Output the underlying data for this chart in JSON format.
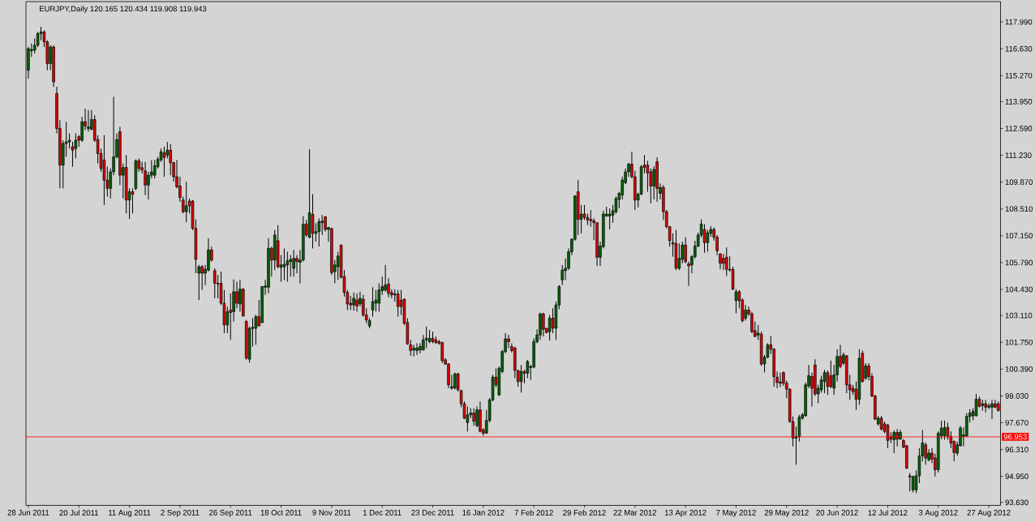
{
  "chart_data": {
    "type": "candlestick",
    "title": "EURJPY,Daily 120.165 120.434 119.908 119.943",
    "categories": [
      "28 Jun 2011",
      null,
      null,
      null,
      null,
      null,
      null,
      null,
      null,
      null,
      null,
      null,
      null,
      null,
      null,
      null,
      "20 Jul 2011",
      null,
      null,
      null,
      null,
      null,
      null,
      null,
      null,
      null,
      null,
      null,
      null,
      null,
      null,
      null,
      "11 Aug 2011",
      null,
      null,
      null,
      null,
      null,
      null,
      null,
      null,
      null,
      null,
      null,
      null,
      null,
      null,
      null,
      "2 Sep 2011",
      null,
      null,
      null,
      null,
      null,
      null,
      null,
      null,
      null,
      null,
      null,
      null,
      null,
      null,
      null,
      "26 Sep 2011",
      null,
      null,
      null,
      null,
      null,
      null,
      null,
      null,
      null,
      null,
      null,
      null,
      null,
      null,
      null,
      "18 Oct 2011",
      null,
      null,
      null,
      null,
      null,
      null,
      null,
      null,
      null,
      null,
      null,
      null,
      null,
      null,
      null,
      "9 Nov 2011",
      null,
      null,
      null,
      null,
      null,
      null,
      null,
      null,
      null,
      null,
      null,
      null,
      null,
      null,
      null,
      "1 Dec 2011",
      null,
      null,
      null,
      null,
      null,
      null,
      null,
      null,
      null,
      null,
      null,
      null,
      null,
      null,
      null,
      "23 Dec 2011",
      null,
      null,
      null,
      null,
      null,
      null,
      null,
      null,
      null,
      null,
      null,
      null,
      null,
      null,
      null,
      "16 Jan 2012",
      null,
      null,
      null,
      null,
      null,
      null,
      null,
      null,
      null,
      null,
      null,
      null,
      null,
      null,
      null,
      "7 Feb 2012",
      null,
      null,
      null,
      null,
      null,
      null,
      null,
      null,
      null,
      null,
      null,
      null,
      null,
      null,
      null,
      "29 Feb 2012",
      null,
      null,
      null,
      null,
      null,
      null,
      null,
      null,
      null,
      null,
      null,
      null,
      null,
      null,
      null,
      "22 Mar 2012",
      null,
      null,
      null,
      null,
      null,
      null,
      null,
      null,
      null,
      null,
      null,
      null,
      null,
      null,
      null,
      "13 Apr 2012",
      null,
      null,
      null,
      null,
      null,
      null,
      null,
      null,
      null,
      null,
      null,
      null,
      null,
      null,
      null,
      "7 May 2012",
      null,
      null,
      null,
      null,
      null,
      null,
      null,
      null,
      null,
      null,
      null,
      null,
      null,
      null,
      null,
      "29 May 2012",
      null,
      null,
      null,
      null,
      null,
      null,
      null,
      null,
      null,
      null,
      null,
      null,
      null,
      null,
      null,
      "20 Jun 2012",
      null,
      null,
      null,
      null,
      null,
      null,
      null,
      null,
      null,
      null,
      null,
      null,
      null,
      null,
      null,
      "12 Jul 2012",
      null,
      null,
      null,
      null,
      null,
      null,
      null,
      null,
      null,
      null,
      null,
      null,
      null,
      null,
      null,
      "3 Aug 2012",
      null,
      null,
      null,
      null,
      null,
      null,
      null,
      null,
      null,
      null,
      null,
      null,
      null,
      null,
      null,
      "27 Aug 2012",
      null,
      null,
      null
    ],
    "ohlc": [
      [
        115.54,
        116.72,
        115.12,
        116.64
      ],
      [
        116.52,
        116.89,
        116.22,
        116.59
      ],
      [
        116.56,
        117.15,
        116.39,
        116.81
      ],
      [
        116.81,
        117.48,
        116.72,
        117.4
      ],
      [
        117.4,
        117.74,
        117.06,
        117.48
      ],
      [
        117.48,
        117.57,
        116.72,
        116.98
      ],
      [
        116.98,
        117.06,
        115.54,
        115.88
      ],
      [
        115.88,
        116.81,
        115.54,
        116.72
      ],
      [
        116.72,
        116.81,
        114.7,
        114.95
      ],
      [
        114.36,
        114.7,
        112.34,
        112.59
      ],
      [
        112.59,
        113.01,
        109.55,
        110.73
      ],
      [
        110.73,
        111.99,
        109.55,
        111.83
      ],
      [
        111.83,
        112.93,
        111.15,
        111.91
      ],
      [
        111.91,
        112.34,
        111.57,
        111.99
      ],
      [
        111.66,
        111.91,
        110.65,
        111.49
      ],
      [
        111.57,
        112.34,
        111.07,
        111.99
      ],
      [
        112.17,
        112.25,
        111.66,
        111.99
      ],
      [
        111.99,
        113.18,
        111.91,
        112.93
      ],
      [
        112.93,
        113.6,
        112.5,
        112.71
      ],
      [
        112.59,
        113.52,
        112.42,
        112.67
      ],
      [
        112.54,
        113.52,
        112.5,
        113.04
      ],
      [
        113.04,
        113.26,
        111.91,
        111.99
      ],
      [
        112.03,
        112.25,
        110.82,
        111.32
      ],
      [
        111.32,
        111.57,
        110.39,
        110.56
      ],
      [
        110.99,
        112.25,
        108.71,
        109.97
      ],
      [
        109.97,
        110.65,
        109.13,
        109.55
      ],
      [
        109.55,
        110.56,
        109.04,
        110.39
      ],
      [
        110.39,
        114.19,
        110.22,
        111.15
      ],
      [
        111.15,
        112.34,
        111.07,
        112.03
      ],
      [
        112.42,
        112.67,
        109.72,
        110.22
      ],
      [
        110.22,
        110.82,
        109.04,
        110.61
      ],
      [
        110.61,
        111.24,
        108.28,
        108.96
      ],
      [
        108.96,
        109.55,
        108.0,
        109.38
      ],
      [
        109.38,
        109.55,
        108.28,
        109.25
      ],
      [
        109.55,
        111.02,
        109.46,
        110.95
      ],
      [
        110.95,
        111.07,
        110.39,
        110.56
      ],
      [
        110.6,
        110.9,
        110.31,
        110.48
      ],
      [
        110.44,
        110.9,
        109.21,
        109.72
      ],
      [
        109.72,
        110.39,
        108.99,
        110.22
      ],
      [
        110.22,
        110.99,
        110.06,
        110.39
      ],
      [
        110.22,
        110.99,
        110.06,
        110.7
      ],
      [
        110.65,
        111.15,
        110.56,
        111.02
      ],
      [
        110.99,
        111.57,
        110.9,
        111.41
      ],
      [
        111.36,
        111.66,
        110.14,
        111.12
      ],
      [
        111.24,
        111.91,
        111.07,
        111.49
      ],
      [
        111.49,
        111.8,
        110.22,
        110.85
      ],
      [
        110.85,
        110.9,
        109.89,
        110.14
      ],
      [
        110.14,
        110.99,
        109.55,
        109.63
      ],
      [
        109.67,
        110.14,
        108.87,
        109.09
      ],
      [
        108.96,
        109.13,
        108.28,
        108.37
      ],
      [
        108.37,
        109.89,
        107.83,
        108.67
      ],
      [
        108.91,
        109.04,
        108.28,
        108.67
      ],
      [
        108.91,
        108.96,
        107.44,
        107.52
      ],
      [
        107.52,
        107.98,
        105.25,
        105.95
      ],
      [
        105.25,
        105.67,
        103.89,
        105.58
      ],
      [
        105.58,
        105.67,
        104.4,
        105.25
      ],
      [
        105.25,
        105.67,
        104.65,
        105.45
      ],
      [
        105.41,
        107.02,
        105.33,
        106.43
      ],
      [
        106.43,
        106.6,
        105.84,
        105.92
      ],
      [
        105.38,
        105.5,
        103.98,
        104.74
      ],
      [
        104.74,
        105.16,
        103.98,
        104.7
      ],
      [
        104.74,
        105.33,
        103.64,
        103.73
      ],
      [
        103.73,
        104.4,
        102.21,
        102.63
      ],
      [
        102.63,
        103.56,
        102.21,
        103.3
      ],
      [
        103.38,
        104.23,
        101.87,
        103.26
      ],
      [
        103.3,
        104.94,
        102.8,
        104.31
      ],
      [
        104.31,
        104.82,
        103.47,
        103.73
      ],
      [
        103.69,
        104.91,
        103.3,
        104.44
      ],
      [
        104.44,
        104.49,
        103.05,
        103.08
      ],
      [
        102.8,
        102.88,
        100.86,
        100.94
      ],
      [
        100.89,
        102.55,
        100.72,
        102.46
      ],
      [
        102.45,
        102.97,
        101.53,
        102.51
      ],
      [
        102.46,
        103.14,
        101.62,
        103.05
      ],
      [
        103.05,
        103.89,
        102.55,
        102.58
      ],
      [
        102.75,
        104.6,
        102.71,
        104.57
      ],
      [
        104.54,
        104.91,
        104.15,
        104.6
      ],
      [
        104.54,
        107.02,
        104.23,
        106.51
      ],
      [
        106.51,
        106.6,
        105.08,
        105.92
      ],
      [
        105.92,
        107.44,
        105.41,
        107.19
      ],
      [
        106.9,
        107.69,
        105.5,
        105.58
      ],
      [
        105.55,
        106.17,
        104.82,
        105.67
      ],
      [
        105.58,
        106.51,
        104.91,
        105.7
      ],
      [
        105.67,
        106.34,
        104.82,
        105.88
      ],
      [
        105.84,
        106.17,
        105.08,
        105.95
      ],
      [
        105.5,
        106.43,
        105.08,
        106.0
      ],
      [
        106.0,
        106.17,
        105.25,
        105.84
      ],
      [
        105.8,
        106.43,
        104.74,
        105.92
      ],
      [
        105.92,
        108.15,
        105.84,
        107.74
      ],
      [
        107.74,
        107.95,
        107.1,
        107.19
      ],
      [
        107.07,
        111.54,
        107.02,
        108.32
      ],
      [
        108.23,
        109.26,
        106.51,
        107.27
      ],
      [
        107.27,
        107.78,
        106.85,
        107.36
      ],
      [
        107.36,
        108.03,
        106.6,
        107.86
      ],
      [
        107.81,
        108.2,
        107.19,
        107.89
      ],
      [
        108.11,
        108.15,
        107.36,
        107.47
      ],
      [
        107.47,
        107.61,
        106.85,
        107.56
      ],
      [
        107.51,
        107.56,
        105.16,
        105.28
      ],
      [
        105.33,
        105.92,
        104.74,
        105.67
      ],
      [
        105.58,
        106.34,
        104.91,
        106.12
      ],
      [
        106.68,
        106.71,
        104.99,
        105.04
      ],
      [
        105.08,
        105.41,
        104.06,
        104.27
      ],
      [
        104.27,
        104.4,
        103.38,
        103.69
      ],
      [
        103.73,
        104.1,
        103.38,
        103.64
      ],
      [
        103.64,
        104.27,
        103.35,
        103.98
      ],
      [
        103.89,
        104.23,
        103.3,
        103.59
      ],
      [
        103.69,
        104.31,
        103.56,
        103.98
      ],
      [
        103.93,
        104.15,
        103.05,
        103.13
      ],
      [
        103.13,
        103.47,
        102.71,
        102.88
      ],
      [
        102.58,
        102.97,
        102.46,
        102.85
      ],
      [
        103.38,
        104.54,
        103.05,
        103.81
      ],
      [
        103.73,
        104.4,
        103.3,
        103.89
      ],
      [
        103.73,
        104.74,
        103.3,
        104.4
      ],
      [
        104.37,
        105.08,
        104.15,
        104.57
      ],
      [
        104.4,
        105.67,
        104.31,
        104.65
      ],
      [
        104.7,
        104.99,
        104.03,
        104.23
      ],
      [
        104.27,
        104.44,
        103.98,
        104.15
      ],
      [
        104.15,
        104.44,
        103.81,
        104.2
      ],
      [
        104.2,
        104.4,
        103.05,
        103.56
      ],
      [
        103.89,
        104.4,
        103.13,
        103.56
      ],
      [
        103.93,
        103.98,
        102.63,
        102.71
      ],
      [
        102.75,
        102.97,
        101.62,
        101.67
      ],
      [
        101.62,
        101.87,
        101.06,
        101.33
      ],
      [
        101.36,
        101.62,
        101.03,
        101.45
      ],
      [
        101.33,
        101.7,
        101.11,
        101.45
      ],
      [
        101.36,
        101.7,
        101.19,
        101.53
      ],
      [
        101.36,
        102.12,
        101.33,
        101.87
      ],
      [
        101.87,
        102.55,
        101.45,
        101.95
      ],
      [
        101.78,
        102.38,
        101.7,
        101.95
      ],
      [
        101.95,
        102.29,
        101.7,
        101.78
      ],
      [
        101.87,
        102.04,
        101.67,
        101.73
      ],
      [
        101.78,
        101.87,
        101.62,
        101.7
      ],
      [
        101.73,
        101.78,
        100.69,
        100.82
      ],
      [
        100.86,
        100.94,
        100.6,
        100.65
      ],
      [
        100.65,
        100.69,
        99.42,
        99.59
      ],
      [
        99.42,
        100.1,
        99.34,
        99.5
      ],
      [
        99.42,
        100.21,
        99.37,
        100.15
      ],
      [
        100.15,
        100.21,
        99.25,
        99.34
      ],
      [
        99.3,
        99.34,
        98.46,
        98.63
      ],
      [
        98.63,
        98.75,
        97.85,
        97.9
      ],
      [
        97.68,
        98.49,
        97.23,
        98.07
      ],
      [
        98.07,
        98.41,
        97.9,
        98.16
      ],
      [
        98.16,
        98.41,
        97.52,
        97.74
      ],
      [
        97.52,
        98.49,
        97.45,
        98.32
      ],
      [
        98.32,
        98.75,
        97.18,
        97.23
      ],
      [
        97.31,
        97.4,
        97.01,
        97.14
      ],
      [
        97.14,
        98.32,
        97.11,
        97.79
      ],
      [
        97.79,
        98.92,
        97.68,
        98.83
      ],
      [
        98.83,
        100.1,
        98.75,
        99.98
      ],
      [
        99.98,
        100.43,
        99.47,
        99.59
      ],
      [
        99.08,
        100.52,
        99.03,
        100.43
      ],
      [
        100.27,
        101.36,
        100.18,
        101.28
      ],
      [
        101.28,
        102.21,
        101.19,
        101.92
      ],
      [
        101.92,
        102.12,
        101.45,
        101.78
      ],
      [
        101.53,
        101.7,
        101.23,
        101.33
      ],
      [
        101.45,
        101.53,
        99.93,
        100.32
      ],
      [
        100.32,
        100.35,
        99.5,
        99.76
      ],
      [
        99.76,
        100.6,
        99.2,
        100.27
      ],
      [
        100.27,
        100.35,
        99.67,
        100.18
      ],
      [
        100.18,
        100.86,
        99.93,
        100.77
      ],
      [
        100.47,
        100.6,
        99.84,
        100.52
      ],
      [
        100.49,
        101.95,
        100.43,
        101.78
      ],
      [
        101.78,
        102.41,
        101.7,
        102.12
      ],
      [
        102.12,
        103.25,
        101.87,
        103.19
      ],
      [
        103.19,
        103.25,
        102.04,
        102.41
      ],
      [
        102.46,
        102.46,
        102.21,
        102.24
      ],
      [
        102.29,
        103.13,
        101.84,
        102.97
      ],
      [
        102.97,
        103.47,
        102.21,
        102.46
      ],
      [
        102.46,
        103.81,
        101.87,
        103.64
      ],
      [
        103.64,
        104.65,
        103.42,
        104.57
      ],
      [
        104.91,
        105.67,
        104.65,
        105.41
      ],
      [
        105.38,
        106.0,
        104.91,
        105.5
      ],
      [
        105.5,
        106.51,
        105.41,
        106.34
      ],
      [
        106.34,
        107.02,
        106.17,
        106.97
      ],
      [
        106.97,
        109.21,
        106.9,
        109.16
      ],
      [
        109.38,
        109.97,
        107.19,
        107.98
      ],
      [
        107.98,
        108.71,
        107.27,
        108.25
      ],
      [
        108.25,
        108.71,
        107.95,
        108.08
      ],
      [
        108.08,
        108.28,
        107.69,
        107.95
      ],
      [
        107.98,
        108.45,
        107.61,
        107.91
      ],
      [
        107.91,
        108.03,
        106.93,
        107.81
      ],
      [
        107.81,
        107.81,
        105.62,
        106.06
      ],
      [
        106.06,
        106.85,
        105.62,
        106.63
      ],
      [
        106.6,
        108.42,
        106.51,
        108.25
      ],
      [
        108.15,
        108.62,
        108.11,
        108.25
      ],
      [
        108.15,
        108.54,
        107.47,
        108.25
      ],
      [
        108.2,
        108.71,
        107.81,
        108.42
      ],
      [
        108.37,
        109.13,
        108.28,
        109.04
      ],
      [
        108.99,
        109.38,
        108.54,
        109.3
      ],
      [
        109.21,
        110.14,
        108.99,
        109.97
      ],
      [
        109.84,
        110.56,
        109.77,
        110.39
      ],
      [
        110.39,
        110.85,
        110.14,
        110.78
      ],
      [
        110.78,
        111.41,
        110.06,
        110.14
      ],
      [
        110.14,
        110.44,
        108.45,
        108.96
      ],
      [
        108.96,
        109.33,
        108.59,
        109.26
      ],
      [
        109.26,
        110.73,
        109.21,
        110.65
      ],
      [
        110.73,
        111.24,
        110.31,
        110.61
      ],
      [
        110.73,
        110.95,
        109.38,
        110.34
      ],
      [
        110.39,
        110.56,
        108.79,
        109.67
      ],
      [
        109.67,
        110.68,
        108.99,
        110.51
      ],
      [
        110.9,
        111.12,
        108.87,
        109.55
      ],
      [
        109.3,
        109.8,
        108.99,
        109.6
      ],
      [
        109.6,
        109.72,
        107.95,
        108.37
      ],
      [
        108.37,
        108.45,
        107.52,
        107.61
      ],
      [
        107.61,
        107.64,
        106.6,
        106.9
      ],
      [
        106.8,
        107.27,
        106.09,
        106.73
      ],
      [
        106.76,
        107.44,
        105.41,
        105.5
      ],
      [
        105.5,
        106.76,
        105.41,
        106.0
      ],
      [
        105.95,
        106.85,
        105.75,
        106.68
      ],
      [
        106.68,
        107.07,
        105.75,
        105.84
      ],
      [
        105.72,
        105.84,
        104.6,
        105.62
      ],
      [
        105.67,
        106.17,
        105.25,
        106.09
      ],
      [
        106.09,
        106.9,
        106.0,
        106.63
      ],
      [
        106.63,
        107.3,
        106.56,
        107.19
      ],
      [
        107.19,
        107.98,
        107.07,
        107.74
      ],
      [
        107.47,
        107.74,
        106.29,
        106.8
      ],
      [
        106.8,
        107.44,
        106.34,
        107.3
      ],
      [
        107.27,
        107.64,
        107.1,
        107.47
      ],
      [
        107.47,
        107.57,
        106.9,
        107.07
      ],
      [
        107.07,
        107.19,
        106.17,
        106.39
      ],
      [
        106.23,
        106.26,
        105.45,
        105.75
      ],
      [
        106.0,
        106.23,
        105.41,
        105.75
      ],
      [
        106.06,
        106.56,
        105.11,
        105.45
      ],
      [
        105.45,
        106.12,
        105.33,
        105.41
      ],
      [
        105.45,
        105.58,
        104.4,
        104.44
      ],
      [
        103.86,
        104.44,
        103.22,
        104.31
      ],
      [
        104.31,
        104.4,
        103.47,
        103.86
      ],
      [
        103.89,
        103.98,
        102.75,
        102.85
      ],
      [
        102.97,
        103.64,
        102.85,
        103.38
      ],
      [
        103.38,
        103.56,
        103.08,
        103.19
      ],
      [
        103.19,
        103.3,
        102.21,
        102.29
      ],
      [
        102.34,
        102.8,
        102.01,
        102.04
      ],
      [
        102.12,
        102.63,
        101.87,
        102.21
      ],
      [
        102.16,
        102.29,
        100.55,
        100.65
      ],
      [
        100.65,
        101.11,
        100.22,
        100.99
      ],
      [
        100.99,
        101.7,
        100.94,
        101.62
      ],
      [
        101.62,
        102.07,
        101.16,
        101.4
      ],
      [
        101.4,
        101.45,
        99.5,
        100.01
      ],
      [
        99.98,
        100.27,
        99.42,
        99.71
      ],
      [
        99.74,
        100.21,
        99.47,
        99.67
      ],
      [
        100.21,
        100.27,
        99.54,
        99.67
      ],
      [
        99.67,
        99.81,
        98.92,
        99.37
      ],
      [
        99.37,
        99.42,
        97.68,
        97.73
      ],
      [
        97.73,
        97.99,
        96.47,
        96.89
      ],
      [
        96.89,
        97.48,
        95.54,
        96.97
      ],
      [
        96.97,
        98.07,
        96.72,
        97.95
      ],
      [
        97.9,
        98.16,
        97.82,
        98.07
      ],
      [
        98.02,
        99.71,
        97.99,
        99.59
      ],
      [
        99.54,
        100.6,
        99.42,
        100.05
      ],
      [
        100.01,
        100.21,
        98.49,
        99.42
      ],
      [
        100.6,
        100.89,
        99.03,
        99.13
      ],
      [
        99.13,
        99.59,
        98.66,
        99.42
      ],
      [
        99.34,
        100.05,
        99.2,
        99.84
      ],
      [
        99.76,
        100.35,
        99.17,
        100.21
      ],
      [
        100.21,
        100.32,
        99.08,
        99.5
      ],
      [
        100.05,
        100.82,
        99.42,
        99.5
      ],
      [
        99.42,
        100.6,
        99.08,
        100.1
      ],
      [
        100.1,
        101.4,
        99.76,
        101.03
      ],
      [
        101.03,
        101.62,
        100.43,
        100.52
      ],
      [
        100.69,
        101.23,
        100.6,
        101.11
      ],
      [
        101.06,
        101.11,
        99.17,
        99.59
      ],
      [
        99.59,
        100.1,
        98.83,
        99.34
      ],
      [
        99.42,
        99.59,
        99.08,
        99.25
      ],
      [
        99.37,
        99.76,
        98.32,
        98.86
      ],
      [
        98.86,
        101.4,
        98.58,
        100.94
      ],
      [
        101.19,
        101.33,
        99.71,
        99.76
      ],
      [
        99.93,
        100.69,
        99.84,
        100.55
      ],
      [
        100.55,
        100.69,
        99.81,
        100.01
      ],
      [
        100.01,
        100.18,
        98.97,
        99.03
      ],
      [
        99.03,
        99.08,
        97.82,
        97.85
      ],
      [
        97.61,
        98.02,
        97.52,
        97.9
      ],
      [
        97.9,
        98.02,
        97.28,
        97.35
      ],
      [
        97.61,
        97.73,
        97.14,
        97.23
      ],
      [
        97.56,
        97.61,
        96.38,
        96.77
      ],
      [
        96.97,
        97.18,
        96.64,
        96.84
      ],
      [
        96.81,
        97.28,
        96.13,
        97.18
      ],
      [
        97.18,
        97.35,
        96.47,
        96.84
      ],
      [
        96.84,
        97.31,
        96.81,
        97.18
      ],
      [
        96.77,
        96.84,
        96.38,
        96.43
      ],
      [
        96.5,
        96.55,
        95.32,
        95.37
      ],
      [
        94.98,
        95.12,
        94.19,
        94.92
      ],
      [
        94.27,
        94.98,
        94.14,
        94.95
      ],
      [
        94.27,
        95.25,
        94.1,
        94.98
      ],
      [
        94.98,
        96.38,
        94.61,
        95.99
      ],
      [
        95.99,
        97.31,
        95.71,
        96.64
      ],
      [
        96.55,
        96.67,
        95.54,
        95.88
      ],
      [
        95.79,
        96.33,
        95.71,
        96.13
      ],
      [
        96.13,
        96.38,
        95.62,
        95.83
      ],
      [
        95.88,
        96.1,
        94.95,
        95.29
      ],
      [
        95.29,
        97.23,
        95.15,
        97.14
      ],
      [
        97.01,
        97.78,
        96.84,
        97.4
      ],
      [
        97.01,
        97.78,
        96.81,
        97.43
      ],
      [
        97.43,
        97.68,
        96.81,
        96.97
      ],
      [
        96.97,
        97.23,
        96.38,
        96.64
      ],
      [
        96.72,
        96.77,
        95.71,
        96.16
      ],
      [
        96.13,
        96.72,
        96.0,
        96.55
      ],
      [
        96.5,
        97.51,
        96.47,
        97.4
      ],
      [
        96.97,
        97.45,
        96.47,
        97.06
      ],
      [
        97.01,
        98.16,
        96.94,
        97.99
      ],
      [
        97.99,
        98.36,
        97.68,
        98.16
      ],
      [
        98.02,
        98.41,
        97.79,
        98.24
      ],
      [
        98.02,
        99.13,
        97.99,
        98.86
      ],
      [
        98.86,
        99.0,
        98.46,
        98.49
      ],
      [
        98.54,
        98.83,
        98.29,
        98.63
      ],
      [
        98.63,
        98.83,
        98.19,
        98.46
      ],
      [
        98.46,
        98.66,
        98.36,
        98.53
      ],
      [
        98.46,
        98.83,
        97.85,
        98.63
      ],
      [
        98.63,
        98.83,
        98.41,
        98.46
      ],
      [
        98.63,
        98.75,
        98.24,
        98.29
      ]
    ],
    "colors": [
      "#006400",
      "#006400",
      "#006400",
      "#006400",
      "#006400",
      "#e00000",
      "#e00000",
      "#006400",
      "#e00000",
      "#e00000",
      "#e00000",
      "#006400",
      "#006400",
      "#006400",
      "#e00000",
      "#006400",
      "#e00000",
      "#006400",
      "#e00000",
      "#006400",
      "#006400",
      "#e00000",
      "#e00000",
      "#e00000",
      "#e00000",
      "#e00000",
      "#006400",
      "#006400",
      "#006400",
      "#e00000",
      "#006400",
      "#e00000",
      "#006400",
      "#e00000",
      "#006400",
      "#e00000",
      "#e00000",
      "#e00000",
      "#006400",
      "#006400",
      "#006400",
      "#006400",
      "#006400",
      "#e00000",
      "#006400",
      "#e00000",
      "#e00000",
      "#e00000",
      "#e00000",
      "#e00000",
      "#006400",
      "#e00000",
      "#e00000",
      "#e00000",
      "#006400",
      "#e00000",
      "#006400",
      "#006400",
      "#e00000",
      "#e00000",
      "#e00000",
      "#e00000",
      "#e00000",
      "#006400",
      "#e00000",
      "#006400",
      "#e00000",
      "#006400",
      "#e00000",
      "#e00000",
      "#006400",
      "#006400",
      "#006400",
      "#e00000",
      "#006400",
      "#006400",
      "#006400",
      "#e00000",
      "#006400",
      "#e00000",
      "#006400",
      "#006400",
      "#006400",
      "#006400",
      "#006400",
      "#e00000",
      "#006400",
      "#006400",
      "#e00000",
      "#006400",
      "#e00000",
      "#006400",
      "#006400",
      "#006400",
      "#e00000",
      "#006400",
      "#e00000",
      "#006400",
      "#006400",
      "#e00000",
      "#e00000",
      "#e00000",
      "#e00000",
      "#006400",
      "#e00000",
      "#006400",
      "#e00000",
      "#e00000",
      "#006400",
      "#006400",
      "#006400",
      "#006400",
      "#006400",
      "#006400",
      "#e00000",
      "#e00000",
      "#006400",
      "#e00000",
      "#e00000",
      "#e00000",
      "#e00000",
      "#e00000",
      "#006400",
      "#006400",
      "#006400",
      "#006400",
      "#006400",
      "#006400",
      "#e00000",
      "#e00000",
      "#e00000",
      "#e00000",
      "#e00000",
      "#e00000",
      "#006400",
      "#006400",
      "#e00000",
      "#e00000",
      "#e00000",
      "#006400",
      "#006400",
      "#e00000",
      "#006400",
      "#e00000",
      "#e00000",
      "#006400",
      "#006400",
      "#006400",
      "#e00000",
      "#006400",
      "#006400",
      "#006400",
      "#e00000",
      "#e00000",
      "#e00000",
      "#e00000",
      "#006400",
      "#e00000",
      "#006400",
      "#006400",
      "#006400",
      "#006400",
      "#006400",
      "#e00000",
      "#e00000",
      "#006400",
      "#e00000",
      "#006400",
      "#006400",
      "#006400",
      "#006400",
      "#006400",
      "#006400",
      "#006400",
      "#e00000",
      "#006400",
      "#e00000",
      "#e00000",
      "#e00000",
      "#e00000",
      "#e00000",
      "#006400",
      "#006400",
      "#006400",
      "#006400",
      "#006400",
      "#006400",
      "#006400",
      "#006400",
      "#006400",
      "#006400",
      "#e00000",
      "#e00000",
      "#006400",
      "#006400",
      "#e00000",
      "#e00000",
      "#e00000",
      "#006400",
      "#e00000",
      "#006400",
      "#e00000",
      "#e00000",
      "#e00000",
      "#e00000",
      "#e00000",
      "#006400",
      "#006400",
      "#e00000",
      "#e00000",
      "#006400",
      "#006400",
      "#006400",
      "#006400",
      "#e00000",
      "#006400",
      "#006400",
      "#e00000",
      "#e00000",
      "#e00000",
      "#e00000",
      "#e00000",
      "#e00000",
      "#e00000",
      "#006400",
      "#e00000",
      "#e00000",
      "#006400",
      "#e00000",
      "#e00000",
      "#e00000",
      "#006400",
      "#e00000",
      "#006400",
      "#006400",
      "#e00000",
      "#e00000",
      "#e00000",
      "#e00000",
      "#e00000",
      "#e00000",
      "#e00000",
      "#e00000",
      "#006400",
      "#006400",
      "#006400",
      "#006400",
      "#006400",
      "#e00000",
      "#e00000",
      "#006400",
      "#006400",
      "#006400",
      "#e00000",
      "#e00000",
      "#006400",
      "#006400",
      "#e00000",
      "#006400",
      "#e00000",
      "#e00000",
      "#e00000",
      "#e00000",
      "#006400",
      "#e00000",
      "#006400",
      "#e00000",
      "#e00000",
      "#e00000",
      "#006400",
      "#e00000",
      "#e00000",
      "#e00000",
      "#e00000",
      "#006400",
      "#e00000",
      "#006400",
      "#e00000",
      "#e00000",
      "#e00000",
      "#006400",
      "#006400",
      "#006400",
      "#006400",
      "#e00000",
      "#006400",
      "#e00000",
      "#e00000",
      "#006400",
      "#006400",
      "#006400",
      "#e00000",
      "#e00000",
      "#e00000",
      "#006400",
      "#006400",
      "#006400",
      "#006400",
      "#006400",
      "#006400",
      "#006400",
      "#e00000",
      "#006400",
      "#e00000",
      "#006400",
      "#006400",
      "#e00000",
      "#e00000"
    ],
    "ylim": [
      93.48,
      119.02
    ],
    "yticks": [
      {
        "value": 117.99,
        "label": "117.990"
      },
      {
        "value": 116.63,
        "label": "116.630"
      },
      {
        "value": 115.27,
        "label": "115.270"
      },
      {
        "value": 113.95,
        "label": "113.950"
      },
      {
        "value": 112.59,
        "label": "112.590"
      },
      {
        "value": 111.23,
        "label": "111.230"
      },
      {
        "value": 109.87,
        "label": "109.870"
      },
      {
        "value": 108.51,
        "label": "108.510"
      },
      {
        "value": 107.15,
        "label": "107.150"
      },
      {
        "value": 105.79,
        "label": "105.790"
      },
      {
        "value": 104.43,
        "label": "104.430"
      },
      {
        "value": 103.11,
        "label": "103.110"
      },
      {
        "value": 101.75,
        "label": "101.750"
      },
      {
        "value": 100.39,
        "label": "100.390"
      },
      {
        "value": 99.03,
        "label": "99.030"
      },
      {
        "value": 97.67,
        "label": "97.670"
      },
      {
        "value": 96.31,
        "label": "96.310"
      },
      {
        "value": 94.95,
        "label": "94.950"
      },
      {
        "value": 93.63,
        "label": "93.630"
      }
    ],
    "ref_lines": [
      {
        "axis": "y",
        "value": 96.953,
        "label": "96.953",
        "color": "#ff0000"
      }
    ]
  }
}
